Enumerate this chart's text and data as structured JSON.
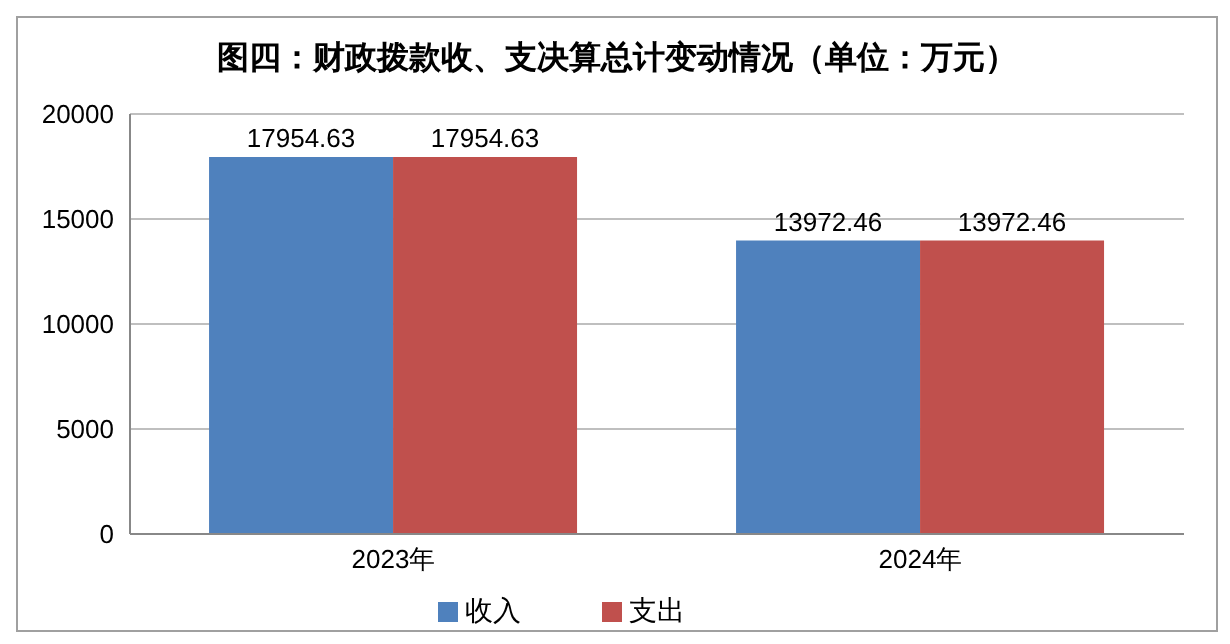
{
  "chart_data": {
    "type": "bar",
    "title": "图四：财政拨款收、支决算总计变动情况（单位：万元）",
    "categories": [
      "2023年",
      "2024年"
    ],
    "series": [
      {
        "name": "收入",
        "color": "#4f81bd",
        "values": [
          17954.63,
          13972.46
        ]
      },
      {
        "name": "支出",
        "color": "#c0504d",
        "values": [
          17954.63,
          13972.46
        ]
      }
    ],
    "ylim": [
      0,
      20000
    ],
    "yticks": [
      0,
      5000,
      10000,
      15000,
      20000
    ],
    "grid": "y",
    "legend": "bottom",
    "data_labels": true
  }
}
